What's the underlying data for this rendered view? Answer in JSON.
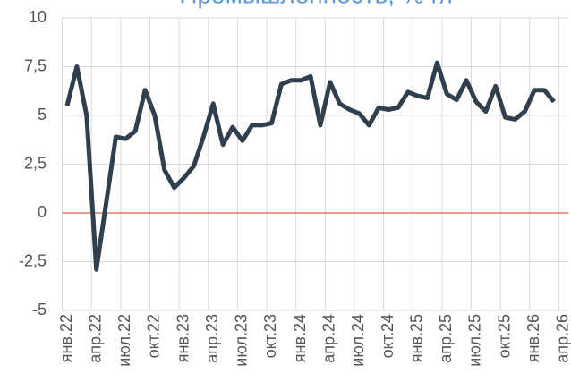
{
  "chart_data": {
    "type": "line",
    "title": "Промышленность, % г/г",
    "categories": [
      "янв.22",
      null,
      null,
      "апр.22",
      null,
      null,
      "июл.22",
      null,
      null,
      "окт.22",
      null,
      null,
      "янв.23",
      null,
      null,
      "апр.23",
      null,
      null,
      "июл.23",
      null,
      null,
      "окт.23",
      null,
      null,
      "янв.24",
      null,
      null,
      "апр.24",
      null,
      null,
      "июл.24",
      null,
      null,
      "окт.24",
      null,
      null,
      "янв.25",
      null,
      null,
      "апр.25",
      null,
      null,
      "июл.25",
      null,
      null,
      "окт.25",
      null,
      null,
      "янв.26",
      null,
      null,
      "апр.26"
    ],
    "series": [
      {
        "name": "Промышленность",
        "color": "#2f3f4d",
        "values": [
          5.5,
          7.5,
          5.0,
          -2.9,
          0.5,
          3.9,
          3.8,
          4.2,
          6.3,
          5.0,
          2.2,
          1.3,
          1.8,
          2.4,
          3.9,
          5.6,
          3.5,
          4.4,
          3.7,
          4.5,
          4.5,
          4.6,
          6.6,
          6.8,
          6.8,
          7.0,
          4.5,
          6.7,
          5.6,
          5.3,
          5.1,
          4.5,
          5.4,
          5.3,
          5.4,
          6.2,
          6.0,
          5.9,
          7.7,
          6.1,
          5.8,
          6.8,
          5.7,
          5.2,
          6.5,
          4.9,
          4.8,
          5.2,
          6.3,
          6.3,
          5.7,
          null
        ]
      }
    ],
    "ylim": [
      -5,
      10
    ],
    "yticks": [
      -5,
      {
        "value": -2.5,
        "label": "-2,5"
      },
      0,
      {
        "value": 2.5,
        "label": "2,5"
      },
      5,
      {
        "value": 7.5,
        "label": "7,5"
      },
      10
    ],
    "grid": true,
    "zero_line_color": "#c0392b"
  }
}
